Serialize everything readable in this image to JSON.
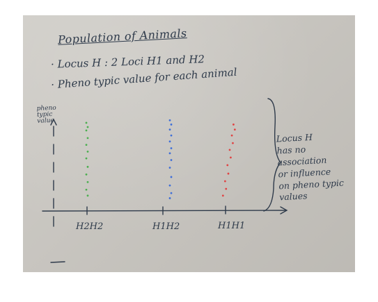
{
  "board": {
    "title": "Population of Animals",
    "bullets": [
      "· Locus   H : 2 Loci  H1 and H2",
      "· Pheno typic value for each animal"
    ],
    "y_axis_label": "pheno typic value",
    "annotation": "Locus H\nhas no\nassociation\nor influence\non pheno typic\nvalues",
    "ink_color": "#2e3a4a"
  },
  "chart_data": {
    "type": "scatter",
    "categories": [
      "H2H2",
      "H1H2",
      "H1H1"
    ],
    "series": [
      {
        "color": "#4caf50",
        "category": "H2H2",
        "values": [
          9.6,
          9.1,
          8.7,
          7.8,
          7.0,
          6.2,
          5.4,
          4.4,
          3.5,
          2.6,
          1.7,
          1.0
        ]
      },
      {
        "color": "#3f6fd8",
        "category": "H1H2",
        "values": [
          9.9,
          9.4,
          8.8,
          8.1,
          7.4,
          6.6,
          6.0,
          5.2,
          4.3,
          3.2,
          2.2,
          1.3,
          0.7
        ]
      },
      {
        "color": "#e04444",
        "category": "H1H1",
        "values": [
          9.4,
          8.8,
          8.1,
          7.2,
          6.4,
          5.5,
          4.6,
          3.6,
          2.7,
          1.8,
          1.0
        ]
      }
    ]
  }
}
